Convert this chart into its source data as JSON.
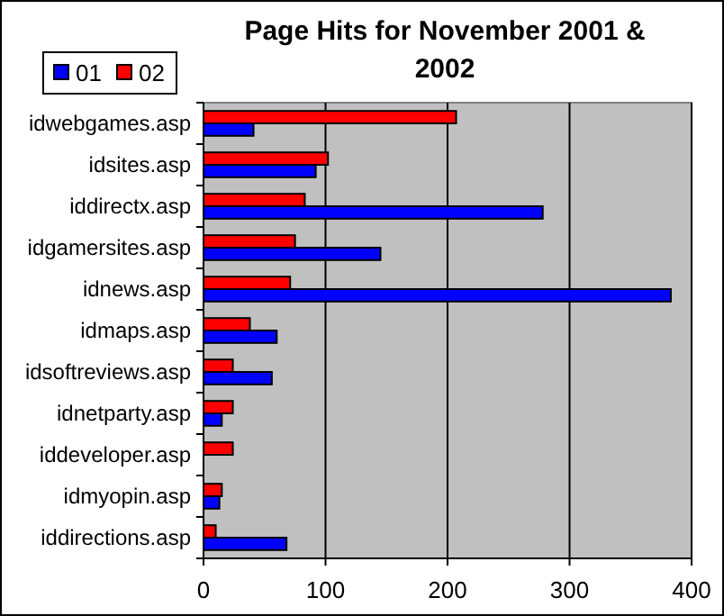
{
  "chart_data": {
    "type": "bar",
    "orientation": "horizontal",
    "title": "Page Hits for November 2001 & 2002",
    "categories": [
      "idwebgames.asp",
      "idsites.asp",
      "iddirectx.asp",
      "idgamersites.asp",
      "idnews.asp",
      "idmaps.asp",
      "idsoftreviews.asp",
      "idnetparty.asp",
      "iddeveloper.asp",
      "idmyopin.asp",
      "iddirections.asp"
    ],
    "series": [
      {
        "name": "01",
        "color": "#0000ff",
        "values": [
          41,
          92,
          278,
          145,
          383,
          60,
          56,
          15,
          0,
          13,
          68
        ]
      },
      {
        "name": "02",
        "color": "#ff0000",
        "values": [
          207,
          102,
          83,
          75,
          71,
          38,
          24,
          24,
          24,
          15,
          10
        ]
      }
    ],
    "xlim": [
      0,
      400
    ],
    "xticks": [
      0,
      100,
      200,
      300,
      400
    ],
    "grid": "x",
    "legend": "top left"
  }
}
